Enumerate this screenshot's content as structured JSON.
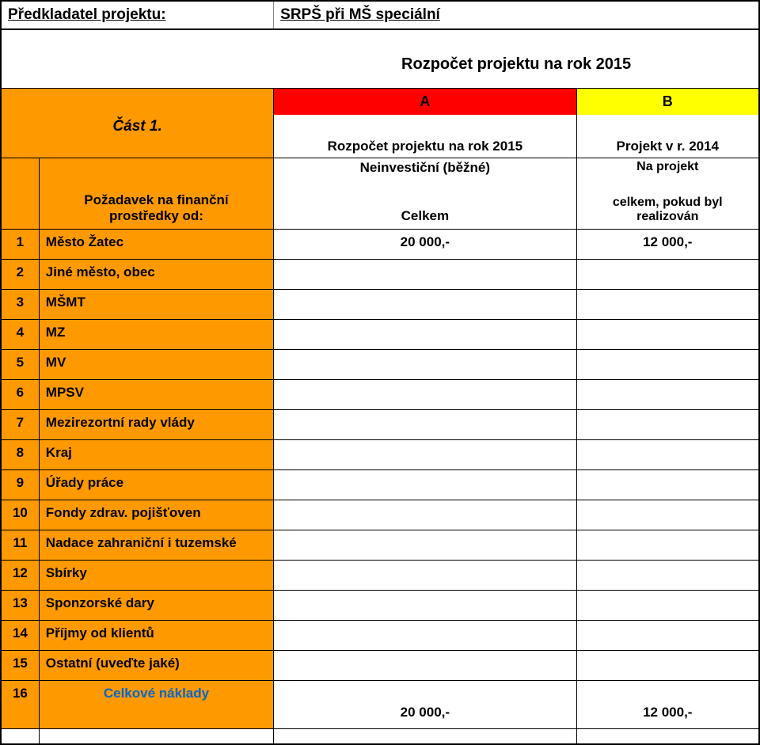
{
  "colors": {
    "orange": "#ff9900",
    "red": "#ff0000",
    "yellow": "#ffff00",
    "link_blue": "#0066cc",
    "border": "#000000",
    "background": "#ffffff"
  },
  "header": {
    "left_label": "Předkladatel projektu:",
    "right_value": "SRPŠ při MŠ speciální"
  },
  "title": "Rozpočet projektu na rok 2015",
  "columns": {
    "a": "A",
    "b": "B"
  },
  "part_label": "Část 1.",
  "subheaders_1": {
    "center": "Rozpočet projektu na rok 2015",
    "right": "Projekt v r. 2014"
  },
  "neinv": {
    "center": "Neinvestiční (běžné)",
    "right_line1": "Na projekt"
  },
  "request_block": {
    "left": "Požadavek na finanční prostředky od:",
    "center": "Celkem",
    "right": "celkem, pokud byl realizován"
  },
  "rows": [
    {
      "num": "1",
      "label": "Město Žatec",
      "a": "20 000,-",
      "b": "12 000,-"
    },
    {
      "num": "2",
      "label": "Jiné město, obec",
      "a": "",
      "b": ""
    },
    {
      "num": "3",
      "label": "MŠMT",
      "a": "",
      "b": ""
    },
    {
      "num": "4",
      "label": "MZ",
      "a": "",
      "b": ""
    },
    {
      "num": "5",
      "label": "MV",
      "a": "",
      "b": ""
    },
    {
      "num": "6",
      "label": "MPSV",
      "a": "",
      "b": ""
    },
    {
      "num": "7",
      "label": "Mezirezortní rady vlády",
      "a": "",
      "b": ""
    },
    {
      "num": "8",
      "label": "Kraj",
      "a": "",
      "b": ""
    },
    {
      "num": "9",
      "label": "Úřady práce",
      "a": "",
      "b": ""
    },
    {
      "num": "10",
      "label": "Fondy zdrav. pojišťoven",
      "a": "",
      "b": ""
    },
    {
      "num": "11",
      "label": "Nadace zahraniční i tuzemské",
      "a": "",
      "b": ""
    },
    {
      "num": "12",
      "label": "Sbírky",
      "a": "",
      "b": ""
    },
    {
      "num": "13",
      "label": "Sponzorské dary",
      "a": "",
      "b": ""
    },
    {
      "num": "14",
      "label": "Příjmy od klientů",
      "a": "",
      "b": ""
    },
    {
      "num": "15",
      "label": "Ostatní (uveďte jaké)",
      "a": "",
      "b": ""
    }
  ],
  "total": {
    "num": "16",
    "label": "Celkové náklady",
    "a": "20 000,-",
    "b": "12 000,-"
  }
}
